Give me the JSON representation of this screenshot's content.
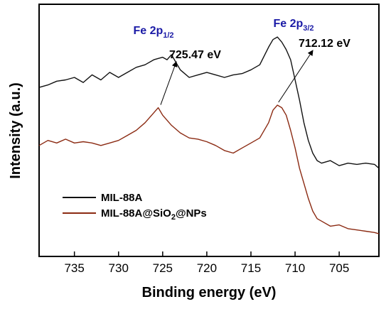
{
  "chart_data": {
    "type": "line",
    "xlabel": "Binding energy (eV)",
    "ylabel": "Intensity (a.u.)",
    "xlim": [
      739,
      700.5
    ],
    "x_reversed": true,
    "ylim": [
      0,
      100
    ],
    "xticks": [
      735,
      730,
      725,
      720,
      715,
      710,
      705
    ],
    "xtick_labels": [
      "735",
      "730",
      "725",
      "720",
      "715",
      "710",
      "705"
    ],
    "yticks_labeled": false,
    "grid": false,
    "legend_position": "bottom-left",
    "peak_labels": [
      {
        "base": "Fe 2p",
        "sub": "1/2",
        "x": 725.47
      },
      {
        "base": "Fe 2p",
        "sub": "3/2",
        "x": 712.12
      }
    ],
    "annotations": [
      {
        "text": "725.47 eV",
        "x": 725.47
      },
      {
        "text": "712.12 eV",
        "x": 712.12
      }
    ],
    "series": [
      {
        "name": "MIL-88A",
        "legend_parts": [
          "MIL-88A"
        ],
        "color": "#111111",
        "points": [
          [
            739,
            67
          ],
          [
            738,
            68
          ],
          [
            737,
            69.5
          ],
          [
            736,
            70
          ],
          [
            735,
            71
          ],
          [
            734,
            69
          ],
          [
            733,
            72
          ],
          [
            732,
            70
          ],
          [
            731,
            73
          ],
          [
            730,
            71
          ],
          [
            729,
            73
          ],
          [
            728,
            75
          ],
          [
            727,
            76
          ],
          [
            726,
            78
          ],
          [
            725,
            79
          ],
          [
            724.5,
            78
          ],
          [
            724,
            80
          ],
          [
            723,
            74
          ],
          [
            722,
            71
          ],
          [
            721,
            72
          ],
          [
            720,
            73
          ],
          [
            719,
            72
          ],
          [
            718,
            71
          ],
          [
            717,
            72
          ],
          [
            716,
            72.5
          ],
          [
            715,
            74
          ],
          [
            714,
            76
          ],
          [
            713,
            83
          ],
          [
            712.5,
            86
          ],
          [
            712,
            87
          ],
          [
            711.5,
            85
          ],
          [
            711,
            82
          ],
          [
            710.5,
            78
          ],
          [
            710,
            70
          ],
          [
            709.5,
            62
          ],
          [
            709,
            53
          ],
          [
            708.5,
            46
          ],
          [
            708,
            41
          ],
          [
            707.5,
            38
          ],
          [
            707,
            37
          ],
          [
            706,
            38
          ],
          [
            705,
            36
          ],
          [
            704,
            37
          ],
          [
            703,
            36.5
          ],
          [
            702,
            37
          ],
          [
            701,
            36.5
          ],
          [
            700.5,
            35
          ]
        ]
      },
      {
        "name": "MIL-88A@SiO2@NPs",
        "legend_parts": [
          "MIL-88A@SiO",
          "2",
          "@NPs"
        ],
        "color": "#8b2a12",
        "points": [
          [
            739,
            44
          ],
          [
            738,
            46
          ],
          [
            737,
            45
          ],
          [
            736,
            46.5
          ],
          [
            735,
            45
          ],
          [
            734,
            45.5
          ],
          [
            733,
            45
          ],
          [
            732,
            44
          ],
          [
            731,
            45
          ],
          [
            730,
            46
          ],
          [
            729,
            48
          ],
          [
            728,
            50
          ],
          [
            727,
            53
          ],
          [
            726,
            57
          ],
          [
            725.5,
            59
          ],
          [
            725,
            56
          ],
          [
            724,
            52
          ],
          [
            723,
            49
          ],
          [
            722,
            47
          ],
          [
            721,
            46.5
          ],
          [
            720,
            45.5
          ],
          [
            719,
            44
          ],
          [
            718,
            42
          ],
          [
            717,
            41
          ],
          [
            716,
            43
          ],
          [
            715,
            45
          ],
          [
            714,
            47
          ],
          [
            713,
            53
          ],
          [
            712.5,
            58
          ],
          [
            712,
            60
          ],
          [
            711.5,
            59
          ],
          [
            711,
            56
          ],
          [
            710.5,
            50
          ],
          [
            710,
            43
          ],
          [
            709.5,
            35
          ],
          [
            709,
            29
          ],
          [
            708.5,
            23
          ],
          [
            708,
            18
          ],
          [
            707.5,
            15
          ],
          [
            707,
            14
          ],
          [
            706,
            12
          ],
          [
            705,
            12.5
          ],
          [
            704,
            11
          ],
          [
            703,
            10.5
          ],
          [
            702,
            10
          ],
          [
            701,
            9.5
          ],
          [
            700.5,
            9
          ]
        ]
      }
    ]
  }
}
